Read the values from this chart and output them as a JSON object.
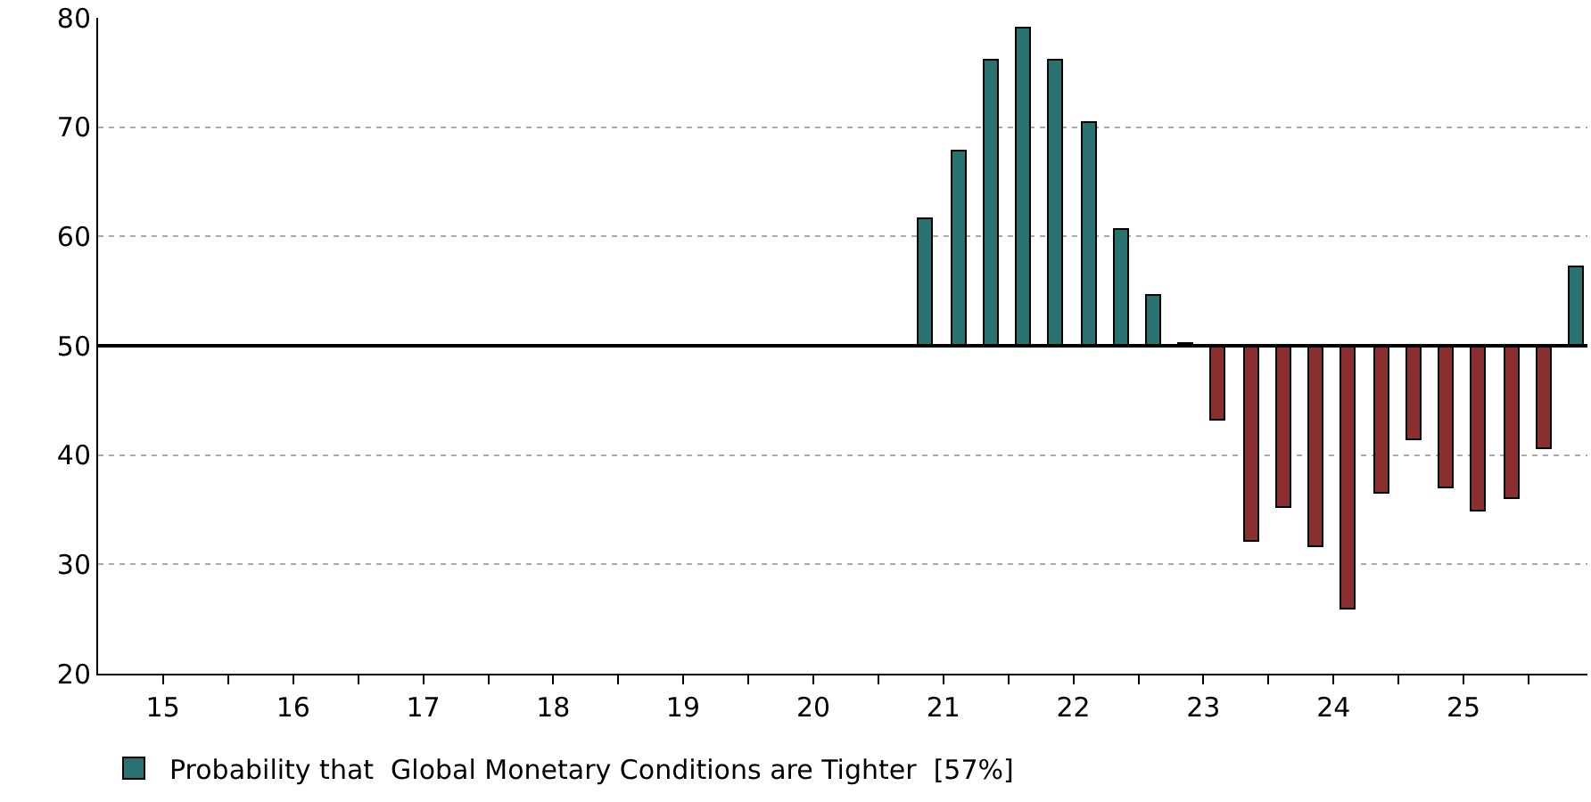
{
  "chart_data": {
    "type": "bar",
    "x": [
      "2021-05-15",
      "2021-08-15",
      "2021-11-15",
      "2022-02-15",
      "2022-05-15",
      "2022-08-15",
      "2022-11-15",
      "2023-02-15",
      "2023-05-15",
      "2023-08-15",
      "2023-11-15",
      "2024-02-15",
      "2024-05-15",
      "2024-08-15",
      "2024-11-15",
      "2025-02-15",
      "2025-05-15",
      "2025-08-15",
      "2025-11-15",
      "2026-02-15",
      "2026-05-15"
    ],
    "series": [
      {
        "name": "Probability that  Global Monetary Conditions are Tighter  [57%]",
        "values": [
          11.6,
          17.7,
          26.1,
          29.1,
          26.1,
          20.4,
          10.6,
          4.5,
          0.2,
          -6.9,
          -17.9,
          -14.9,
          -18.5,
          -24.1,
          -13.6,
          -8.6,
          -13.0,
          -15.2,
          -14.0,
          -9.5,
          7.2
        ],
        "base": [
          50,
          50,
          50,
          50,
          50,
          50,
          50,
          50,
          50,
          50,
          50,
          50,
          50,
          50,
          50,
          50,
          50,
          50,
          50,
          50,
          50
        ],
        "colors": [
          "#2a7371",
          "#2a7371",
          "#2a7371",
          "#2a7371",
          "#2a7371",
          "#2a7371",
          "#2a7371",
          "#2a7371",
          "#2a7371",
          "#8b3030",
          "#8b3030",
          "#8b3030",
          "#8b3030",
          "#8b3030",
          "#8b3030",
          "#8b3030",
          "#8b3030",
          "#8b3030",
          "#8b3030",
          "#8b3030",
          "#2a7371"
        ]
      }
    ],
    "xlim": [
      "2015-01-01",
      "2026-06-15"
    ],
    "xticks": [
      {
        "value": "2015-07-02",
        "label": "15"
      },
      {
        "value": "2016-07-02",
        "label": "16"
      },
      {
        "value": "2017-07-02",
        "label": "17"
      },
      {
        "value": "2018-07-02",
        "label": "18"
      },
      {
        "value": "2019-07-02",
        "label": "19"
      },
      {
        "value": "2020-07-02",
        "label": "20"
      },
      {
        "value": "2021-07-02",
        "label": "21"
      },
      {
        "value": "2022-07-02",
        "label": "22"
      },
      {
        "value": "2023-07-02",
        "label": "23"
      },
      {
        "value": "2024-07-02",
        "label": "24"
      },
      {
        "value": "2025-07-02",
        "label": "25"
      },
      {
        "value": "2016-01-01",
        "label": null
      },
      {
        "value": "2017-01-01",
        "label": null
      },
      {
        "value": "2018-01-01",
        "label": null
      },
      {
        "value": "2019-01-01",
        "label": null
      },
      {
        "value": "2020-01-01",
        "label": null
      },
      {
        "value": "2021-01-01",
        "label": null
      },
      {
        "value": "2022-01-01",
        "label": null
      },
      {
        "value": "2023-01-01",
        "label": null
      },
      {
        "value": "2024-01-01",
        "label": null
      },
      {
        "value": "2025-01-01",
        "label": null
      },
      {
        "value": "2026-01-01",
        "label": null
      }
    ],
    "ylim": [
      20,
      80
    ],
    "yticks": [
      20,
      30,
      40,
      50,
      60,
      70,
      80
    ],
    "ref_lines": [
      {
        "axis": "y",
        "value": 50,
        "color": "#000000"
      }
    ],
    "grid": "y",
    "legend": "bottom"
  }
}
